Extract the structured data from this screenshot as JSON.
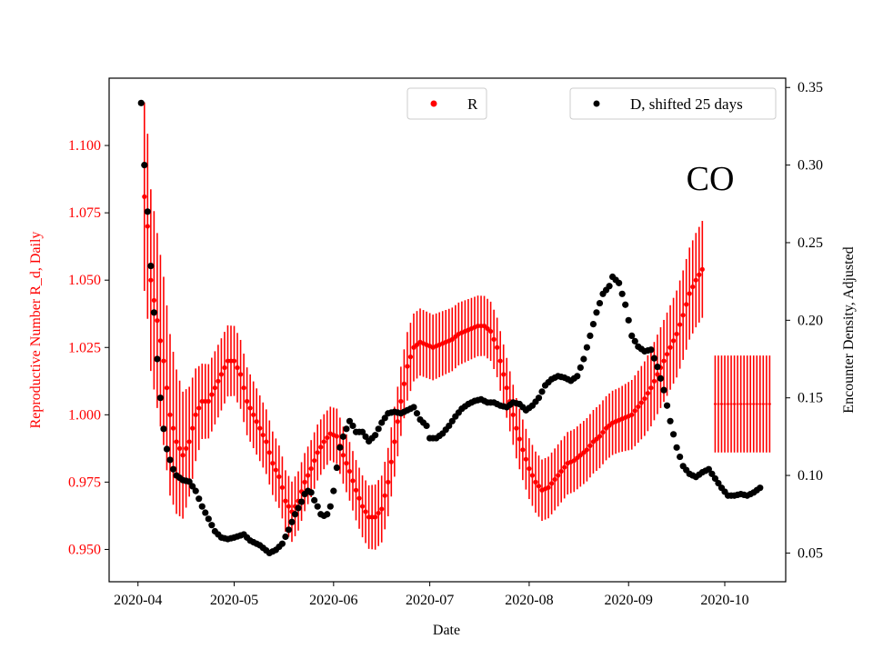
{
  "chart_data": {
    "type": "scatter",
    "annotation": "CO",
    "xlabel": "Date",
    "ylabel_left": "Reproductive Number R_d, Daily",
    "ylabel_right": "Encounter Density, Adjusted",
    "x_ticks": [
      "2020-04",
      "2020-05",
      "2020-06",
      "2020-07",
      "2020-08",
      "2020-09",
      "2020-10"
    ],
    "x_tick_days": [
      0,
      30,
      61,
      91,
      122,
      153,
      183
    ],
    "x_range_days": [
      -9,
      202
    ],
    "y_left_ticks": [
      "0.950",
      "0.975",
      "1.000",
      "1.025",
      "1.050",
      "1.075",
      "1.100"
    ],
    "y_left_range": [
      0.938,
      1.125
    ],
    "y_right_ticks": [
      "0.05",
      "0.10",
      "0.15",
      "0.20",
      "0.25",
      "0.30",
      "0.35"
    ],
    "y_right_range": [
      0.0315,
      0.356
    ],
    "legend_left": {
      "label": "R",
      "color": "#ff0000"
    },
    "legend_right": {
      "label": "D, shifted 25 days",
      "color": "#000000"
    },
    "colors": {
      "r_series": "#ff0000",
      "d_series": "#000000",
      "axis_left": "#ff0000"
    },
    "r_knots": [
      [
        2,
        1.081
      ],
      [
        3,
        1.07
      ],
      [
        4,
        1.05
      ],
      [
        6,
        1.035
      ],
      [
        8,
        1.02
      ],
      [
        10,
        1.0
      ],
      [
        12,
        0.99
      ],
      [
        14,
        0.985
      ],
      [
        16,
        0.99
      ],
      [
        18,
        1.0
      ],
      [
        20,
        1.005
      ],
      [
        22,
        1.005
      ],
      [
        24,
        1.01
      ],
      [
        26,
        1.015
      ],
      [
        28,
        1.02
      ],
      [
        30,
        1.02
      ],
      [
        32,
        1.015
      ],
      [
        34,
        1.005
      ],
      [
        36,
        1.0
      ],
      [
        38,
        0.995
      ],
      [
        40,
        0.99
      ],
      [
        42,
        0.982
      ],
      [
        44,
        0.977
      ],
      [
        45,
        0.973
      ],
      [
        46,
        0.968
      ],
      [
        48,
        0.964
      ],
      [
        50,
        0.968
      ],
      [
        52,
        0.975
      ],
      [
        54,
        0.98
      ],
      [
        56,
        0.986
      ],
      [
        58,
        0.99
      ],
      [
        60,
        0.993
      ],
      [
        62,
        0.992
      ],
      [
        64,
        0.985
      ],
      [
        66,
        0.979
      ],
      [
        68,
        0.972
      ],
      [
        70,
        0.966
      ],
      [
        72,
        0.962
      ],
      [
        74,
        0.962
      ],
      [
        76,
        0.965
      ],
      [
        78,
        0.975
      ],
      [
        80,
        0.99
      ],
      [
        82,
        1.005
      ],
      [
        84,
        1.018
      ],
      [
        86,
        1.025
      ],
      [
        88,
        1.027
      ],
      [
        90,
        1.026
      ],
      [
        92,
        1.025
      ],
      [
        94,
        1.026
      ],
      [
        96,
        1.027
      ],
      [
        98,
        1.028
      ],
      [
        100,
        1.03
      ],
      [
        102,
        1.031
      ],
      [
        104,
        1.032
      ],
      [
        106,
        1.033
      ],
      [
        108,
        1.033
      ],
      [
        110,
        1.031
      ],
      [
        112,
        1.025
      ],
      [
        114,
        1.015
      ],
      [
        116,
        1.005
      ],
      [
        118,
        0.995
      ],
      [
        120,
        0.987
      ],
      [
        122,
        0.98
      ],
      [
        124,
        0.975
      ],
      [
        126,
        0.972
      ],
      [
        128,
        0.973
      ],
      [
        130,
        0.976
      ],
      [
        132,
        0.979
      ],
      [
        134,
        0.982
      ],
      [
        136,
        0.983
      ],
      [
        138,
        0.985
      ],
      [
        140,
        0.987
      ],
      [
        142,
        0.99
      ],
      [
        144,
        0.992
      ],
      [
        146,
        0.995
      ],
      [
        148,
        0.997
      ],
      [
        150,
        0.998
      ],
      [
        152,
        0.999
      ],
      [
        154,
        1.0
      ],
      [
        156,
        1.003
      ],
      [
        158,
        1.006
      ],
      [
        160,
        1.01
      ],
      [
        162,
        1.015
      ],
      [
        164,
        1.02
      ],
      [
        166,
        1.025
      ],
      [
        168,
        1.03
      ],
      [
        170,
        1.037
      ],
      [
        172,
        1.045
      ],
      [
        174,
        1.05
      ],
      [
        176,
        1.054
      ]
    ],
    "r_err_knots": [
      [
        2,
        0.035
      ],
      [
        10,
        0.03
      ],
      [
        20,
        0.014
      ],
      [
        60,
        0.01
      ],
      [
        80,
        0.013
      ],
      [
        110,
        0.011
      ],
      [
        150,
        0.012
      ],
      [
        176,
        0.018
      ]
    ],
    "r_outlier": {
      "x_start": 180,
      "x_end": 197,
      "value": 1.004,
      "err": 0.018
    },
    "d_knots": [
      [
        1,
        0.34
      ],
      [
        2,
        0.3
      ],
      [
        3,
        0.27
      ],
      [
        4,
        0.235
      ],
      [
        5,
        0.205
      ],
      [
        6,
        0.175
      ],
      [
        7,
        0.15
      ],
      [
        8,
        0.13
      ],
      [
        9,
        0.117
      ],
      [
        10,
        0.11
      ],
      [
        11,
        0.104
      ],
      [
        12,
        0.1
      ],
      [
        14,
        0.097
      ],
      [
        16,
        0.096
      ],
      [
        18,
        0.09
      ],
      [
        20,
        0.08
      ],
      [
        22,
        0.072
      ],
      [
        24,
        0.064
      ],
      [
        26,
        0.06
      ],
      [
        28,
        0.059
      ],
      [
        30,
        0.06
      ],
      [
        33,
        0.062
      ],
      [
        35,
        0.058
      ],
      [
        38,
        0.055
      ],
      [
        41,
        0.05
      ],
      [
        43,
        0.052
      ],
      [
        45,
        0.056
      ],
      [
        47,
        0.065
      ],
      [
        49,
        0.075
      ],
      [
        51,
        0.083
      ],
      [
        52,
        0.088
      ],
      [
        53,
        0.09
      ],
      [
        54,
        0.089
      ],
      [
        55,
        0.084
      ],
      [
        56,
        0.08
      ],
      [
        57,
        0.075
      ],
      [
        58,
        0.074
      ],
      [
        59,
        0.075
      ],
      [
        60,
        0.08
      ],
      [
        61,
        0.09
      ],
      [
        62,
        0.105
      ],
      [
        63,
        0.118
      ],
      [
        64,
        0.125
      ],
      [
        65,
        0.13
      ],
      [
        66,
        0.135
      ],
      [
        67,
        0.132
      ],
      [
        68,
        0.128
      ],
      [
        70,
        0.128
      ],
      [
        72,
        0.122
      ],
      [
        74,
        0.126
      ],
      [
        76,
        0.134
      ],
      [
        78,
        0.14
      ],
      [
        80,
        0.141
      ],
      [
        82,
        0.14
      ],
      [
        84,
        0.142
      ],
      [
        86,
        0.144
      ],
      [
        87,
        0.14
      ],
      [
        88,
        0.136
      ],
      [
        90,
        0.132
      ],
      [
        91,
        0.124
      ],
      [
        93,
        0.124
      ],
      [
        95,
        0.127
      ],
      [
        97,
        0.132
      ],
      [
        99,
        0.138
      ],
      [
        101,
        0.143
      ],
      [
        103,
        0.146
      ],
      [
        105,
        0.148
      ],
      [
        107,
        0.149
      ],
      [
        109,
        0.147
      ],
      [
        111,
        0.147
      ],
      [
        113,
        0.145
      ],
      [
        115,
        0.144
      ],
      [
        117,
        0.147
      ],
      [
        119,
        0.146
      ],
      [
        121,
        0.142
      ],
      [
        123,
        0.145
      ],
      [
        125,
        0.15
      ],
      [
        127,
        0.158
      ],
      [
        129,
        0.162
      ],
      [
        131,
        0.164
      ],
      [
        133,
        0.163
      ],
      [
        135,
        0.161
      ],
      [
        137,
        0.164
      ],
      [
        139,
        0.175
      ],
      [
        141,
        0.19
      ],
      [
        143,
        0.205
      ],
      [
        145,
        0.217
      ],
      [
        147,
        0.222
      ],
      [
        148,
        0.228
      ],
      [
        150,
        0.224
      ],
      [
        152,
        0.21
      ],
      [
        154,
        0.19
      ],
      [
        156,
        0.183
      ],
      [
        158,
        0.18
      ],
      [
        160,
        0.181
      ],
      [
        162,
        0.17
      ],
      [
        164,
        0.155
      ],
      [
        166,
        0.135
      ],
      [
        168,
        0.118
      ],
      [
        170,
        0.106
      ],
      [
        172,
        0.101
      ],
      [
        174,
        0.099
      ],
      [
        176,
        0.102
      ],
      [
        178,
        0.104
      ],
      [
        180,
        0.098
      ],
      [
        182,
        0.092
      ],
      [
        184,
        0.087
      ],
      [
        186,
        0.087
      ],
      [
        188,
        0.088
      ],
      [
        190,
        0.087
      ],
      [
        192,
        0.089
      ],
      [
        194,
        0.092
      ]
    ]
  }
}
